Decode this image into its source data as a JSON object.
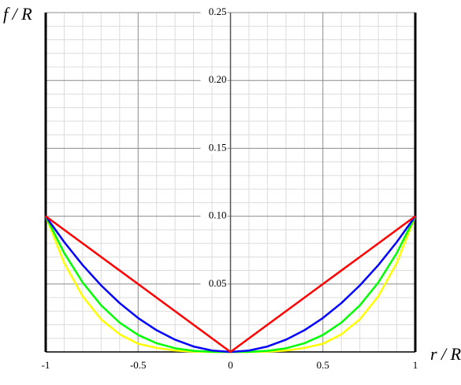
{
  "chart_data": {
    "type": "line",
    "x_label": "r / R",
    "y_label": "f / R",
    "x": [
      -1,
      -0.9,
      -0.8,
      -0.7,
      -0.6,
      -0.5,
      -0.4,
      -0.3,
      -0.2,
      -0.1,
      0,
      0.1,
      0.2,
      0.3,
      0.4,
      0.5,
      0.6,
      0.7,
      0.8,
      0.9,
      1
    ],
    "series": [
      {
        "color": "#ff0000",
        "values": [
          0.1,
          0.09,
          0.08,
          0.07,
          0.06,
          0.05,
          0.04,
          0.03,
          0.02,
          0.01,
          0,
          0.01,
          0.02,
          0.03,
          0.04,
          0.05,
          0.06,
          0.07,
          0.08,
          0.09,
          0.1
        ]
      },
      {
        "color": "#0000ff",
        "values": [
          0.1,
          0.081,
          0.064,
          0.049,
          0.036,
          0.025,
          0.016,
          0.009,
          0.004,
          0.001,
          0,
          0.001,
          0.004,
          0.009,
          0.016,
          0.025,
          0.036,
          0.049,
          0.064,
          0.081,
          0.1
        ]
      },
      {
        "color": "#00ff00",
        "values": [
          0.1,
          0.0729,
          0.0512,
          0.0343,
          0.0216,
          0.0125,
          0.0064,
          0.0027,
          0.0008,
          0.0001,
          0,
          0.0001,
          0.0008,
          0.0027,
          0.0064,
          0.0125,
          0.0216,
          0.0343,
          0.0512,
          0.0729,
          0.1
        ]
      },
      {
        "color": "#ffff00",
        "values": [
          0.1,
          0.0656,
          0.041,
          0.024,
          0.013,
          0.006,
          0.003,
          0.001,
          0.0002,
          0,
          0,
          0,
          0.0002,
          0.001,
          0.003,
          0.006,
          0.013,
          0.024,
          0.041,
          0.0656,
          0.1
        ]
      }
    ],
    "xlim": [
      -1,
      1
    ],
    "ylim": [
      0,
      0.25
    ],
    "xticks": [
      -1,
      -0.5,
      0,
      0.5,
      1
    ],
    "yticks": [
      0.05,
      {
        "value": 0.1,
        "label": "0.10"
      },
      0.15,
      {
        "value": 0.2,
        "label": "0.20"
      },
      0.25
    ],
    "xminorticks": [
      -0.9,
      -0.8,
      -0.7,
      -0.6,
      -0.4,
      -0.3,
      -0.2,
      -0.1,
      0.1,
      0.2,
      0.3,
      0.4,
      0.6,
      0.7,
      0.8,
      0.9
    ],
    "yminorticks": [
      0.01,
      0.02,
      0.03,
      0.04,
      0.06,
      0.07,
      0.08,
      0.09,
      0.11,
      0.12,
      0.13,
      0.14,
      0.16,
      0.17,
      0.18,
      0.19,
      0.21,
      0.22,
      0.23,
      0.24
    ],
    "grid": true
  }
}
